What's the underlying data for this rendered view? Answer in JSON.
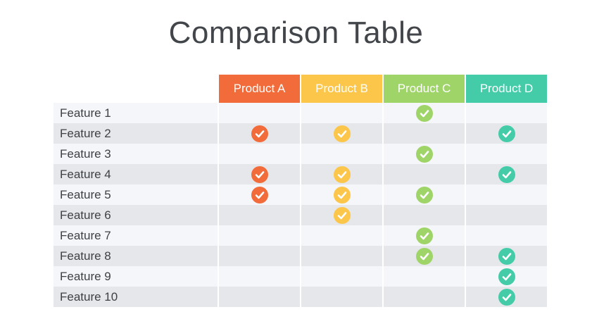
{
  "title": "Comparison Table",
  "products": [
    {
      "name": "Product A",
      "color": "#f26b3a"
    },
    {
      "name": "Product B",
      "color": "#fcc64a"
    },
    {
      "name": "Product C",
      "color": "#9fd468"
    },
    {
      "name": "Product D",
      "color": "#44cca9"
    }
  ],
  "features": [
    {
      "label": "Feature 1",
      "checks": [
        false,
        false,
        true,
        false
      ]
    },
    {
      "label": "Feature 2",
      "checks": [
        true,
        true,
        false,
        true
      ]
    },
    {
      "label": "Feature 3",
      "checks": [
        false,
        false,
        true,
        false
      ]
    },
    {
      "label": "Feature 4",
      "checks": [
        true,
        true,
        false,
        true
      ]
    },
    {
      "label": "Feature 5",
      "checks": [
        true,
        true,
        true,
        false
      ]
    },
    {
      "label": "Feature 6",
      "checks": [
        false,
        true,
        false,
        false
      ]
    },
    {
      "label": "Feature 7",
      "checks": [
        false,
        false,
        true,
        false
      ]
    },
    {
      "label": "Feature 8",
      "checks": [
        false,
        false,
        true,
        true
      ]
    },
    {
      "label": "Feature 9",
      "checks": [
        false,
        false,
        false,
        true
      ]
    },
    {
      "label": "Feature 10",
      "checks": [
        false,
        false,
        false,
        true
      ]
    }
  ],
  "check_icon": "checkmark-circle-icon"
}
